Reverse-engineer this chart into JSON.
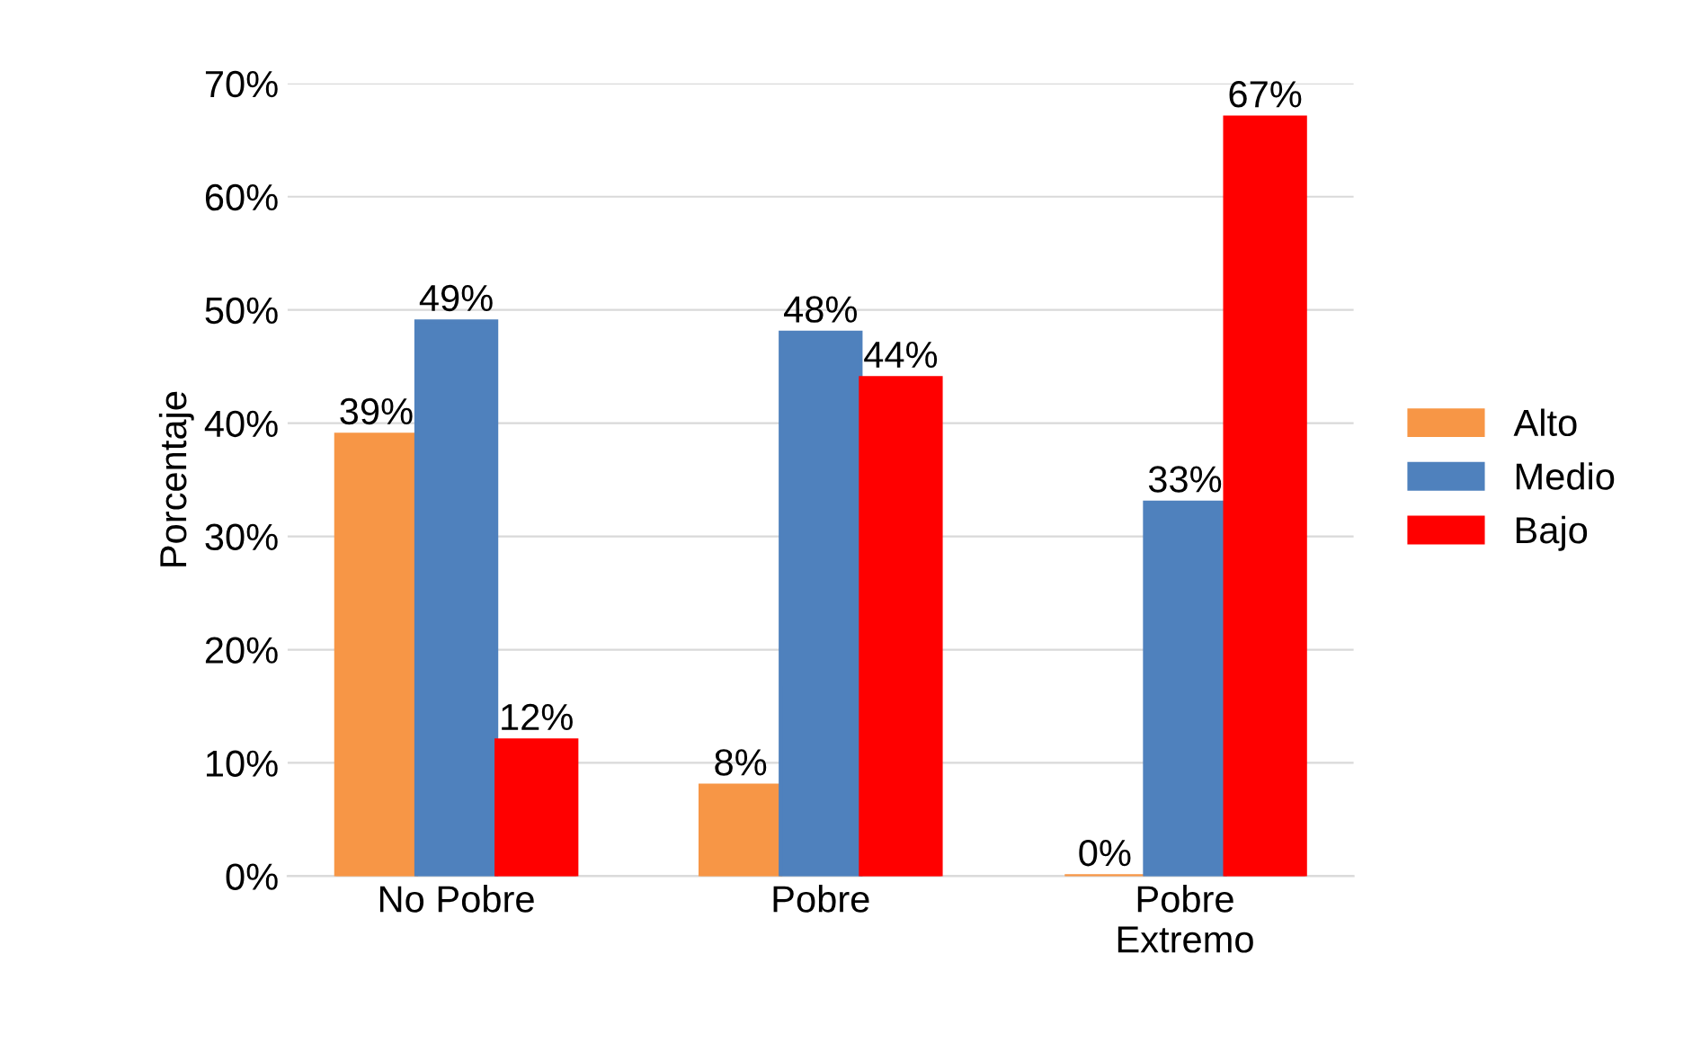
{
  "chart_data": {
    "type": "bar",
    "ylabel": "Porcentaje",
    "categories": [
      "No Pobre",
      "Pobre",
      "Pobre\nExtremo"
    ],
    "series": [
      {
        "name": "Alto",
        "color": "#f79646",
        "values": [
          39,
          8,
          0
        ],
        "value_labels": [
          "39%",
          "8%",
          "0%"
        ]
      },
      {
        "name": "Medio",
        "color": "#4f81bd",
        "values": [
          49,
          48,
          33
        ],
        "value_labels": [
          "49%",
          "48%",
          "33%"
        ]
      },
      {
        "name": "Bajo",
        "color": "#ff0000",
        "values": [
          12,
          44,
          67
        ],
        "value_labels": [
          "12%",
          "44%",
          "67%"
        ]
      }
    ],
    "ylim": [
      0,
      70
    ],
    "yticks": [
      {
        "value": 0,
        "label": "0%"
      },
      {
        "value": 10,
        "label": "10%"
      },
      {
        "value": 20,
        "label": "20%"
      },
      {
        "value": 30,
        "label": "30%"
      },
      {
        "value": 40,
        "label": "40%"
      },
      {
        "value": 50,
        "label": "50%"
      },
      {
        "value": 60,
        "label": "60%"
      },
      {
        "value": 70,
        "label": "70%"
      }
    ],
    "grid": "y",
    "legend": "right"
  }
}
